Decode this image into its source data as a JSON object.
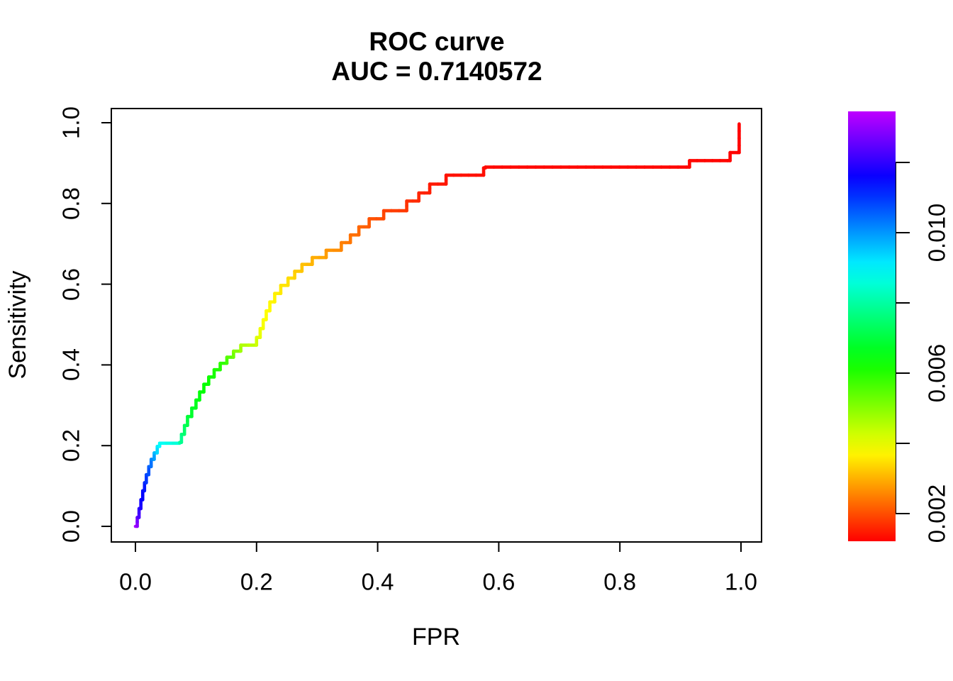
{
  "title": {
    "line1": "ROC curve",
    "line2": "AUC = 0.7140572"
  },
  "axes": {
    "x": {
      "label": "FPR",
      "tick_labels": [
        "0.0",
        "0.2",
        "0.4",
        "0.6",
        "0.8",
        "1.0"
      ],
      "tick_values": [
        0.0,
        0.2,
        0.4,
        0.6,
        0.8,
        1.0
      ],
      "range": [
        0.0,
        1.0
      ]
    },
    "y": {
      "label": "Sensitivity",
      "tick_labels": [
        "0.0",
        "0.2",
        "0.4",
        "0.6",
        "0.8",
        "1.0"
      ],
      "tick_values": [
        0.0,
        0.2,
        0.4,
        0.6,
        0.8,
        1.0
      ],
      "range": [
        0.0,
        1.0
      ]
    }
  },
  "colorbar": {
    "ticks": [
      {
        "value": 0.002,
        "label": "0.002"
      },
      {
        "value": 0.004,
        "label": ""
      },
      {
        "value": 0.006,
        "label": "0.006"
      },
      {
        "value": 0.008,
        "label": ""
      },
      {
        "value": 0.01,
        "label": "0.010"
      },
      {
        "value": 0.012,
        "label": ""
      }
    ],
    "value_range": [
      0.00125,
      0.0135
    ],
    "palette": "rainbow",
    "color_low": "#ff0000",
    "color_high": "#bf00ff"
  },
  "chart_data": {
    "type": "line",
    "subtype": "step-roc",
    "title": "ROC curve",
    "subtitle": "AUC = 0.7140572",
    "auc": 0.7140572,
    "xlabel": "FPR",
    "ylabel": "Sensitivity",
    "xlim": [
      0.0,
      1.0
    ],
    "ylim": [
      0.0,
      1.0
    ],
    "grid": false,
    "legend": "vertical rainbow colorbar at right, red = low threshold (~0.0012) to violet = high threshold (~0.0135)",
    "color_encoding": "each point [fpr, tpr, t] where t is the normalized threshold color (0 = red/low cutoff, 1 = violet/high cutoff)",
    "points": [
      [
        0.0,
        0.0,
        1.0
      ],
      [
        0.003,
        0.022,
        0.93
      ],
      [
        0.006,
        0.044,
        0.885
      ],
      [
        0.009,
        0.066,
        0.855
      ],
      [
        0.012,
        0.088,
        0.84
      ],
      [
        0.015,
        0.108,
        0.82
      ],
      [
        0.018,
        0.128,
        0.79
      ],
      [
        0.022,
        0.148,
        0.77
      ],
      [
        0.026,
        0.166,
        0.74
      ],
      [
        0.031,
        0.182,
        0.7
      ],
      [
        0.036,
        0.198,
        0.65
      ],
      [
        0.04,
        0.206,
        0.63
      ],
      [
        0.073,
        0.208,
        0.56
      ],
      [
        0.076,
        0.228,
        0.53
      ],
      [
        0.081,
        0.25,
        0.5
      ],
      [
        0.086,
        0.272,
        0.47
      ],
      [
        0.093,
        0.293,
        0.455
      ],
      [
        0.1,
        0.313,
        0.44
      ],
      [
        0.106,
        0.333,
        0.43
      ],
      [
        0.113,
        0.352,
        0.42
      ],
      [
        0.121,
        0.37,
        0.41
      ],
      [
        0.13,
        0.388,
        0.4
      ],
      [
        0.14,
        0.404,
        0.39
      ],
      [
        0.151,
        0.419,
        0.36
      ],
      [
        0.162,
        0.434,
        0.32
      ],
      [
        0.174,
        0.449,
        0.28
      ],
      [
        0.2,
        0.468,
        0.24
      ],
      [
        0.206,
        0.49,
        0.225
      ],
      [
        0.211,
        0.512,
        0.215
      ],
      [
        0.216,
        0.534,
        0.21
      ],
      [
        0.222,
        0.556,
        0.205
      ],
      [
        0.23,
        0.577,
        0.2
      ],
      [
        0.24,
        0.597,
        0.19
      ],
      [
        0.252,
        0.615,
        0.185
      ],
      [
        0.263,
        0.632,
        0.17
      ],
      [
        0.275,
        0.649,
        0.16
      ],
      [
        0.292,
        0.666,
        0.145
      ],
      [
        0.315,
        0.684,
        0.125
      ],
      [
        0.34,
        0.703,
        0.105
      ],
      [
        0.355,
        0.722,
        0.095
      ],
      [
        0.369,
        0.742,
        0.085
      ],
      [
        0.386,
        0.762,
        0.07
      ],
      [
        0.41,
        0.782,
        0.055
      ],
      [
        0.448,
        0.806,
        0.04
      ],
      [
        0.468,
        0.826,
        0.03
      ],
      [
        0.486,
        0.848,
        0.022
      ],
      [
        0.513,
        0.87,
        0.015
      ],
      [
        0.575,
        0.888,
        0.01
      ],
      [
        0.578,
        0.89,
        0.008
      ],
      [
        0.91,
        0.89,
        0.006
      ],
      [
        0.915,
        0.906,
        0.005
      ],
      [
        0.978,
        0.906,
        0.004
      ],
      [
        0.982,
        0.926,
        0.003
      ],
      [
        0.994,
        0.926,
        0.002
      ],
      [
        0.997,
        0.997,
        0.0
      ]
    ]
  }
}
